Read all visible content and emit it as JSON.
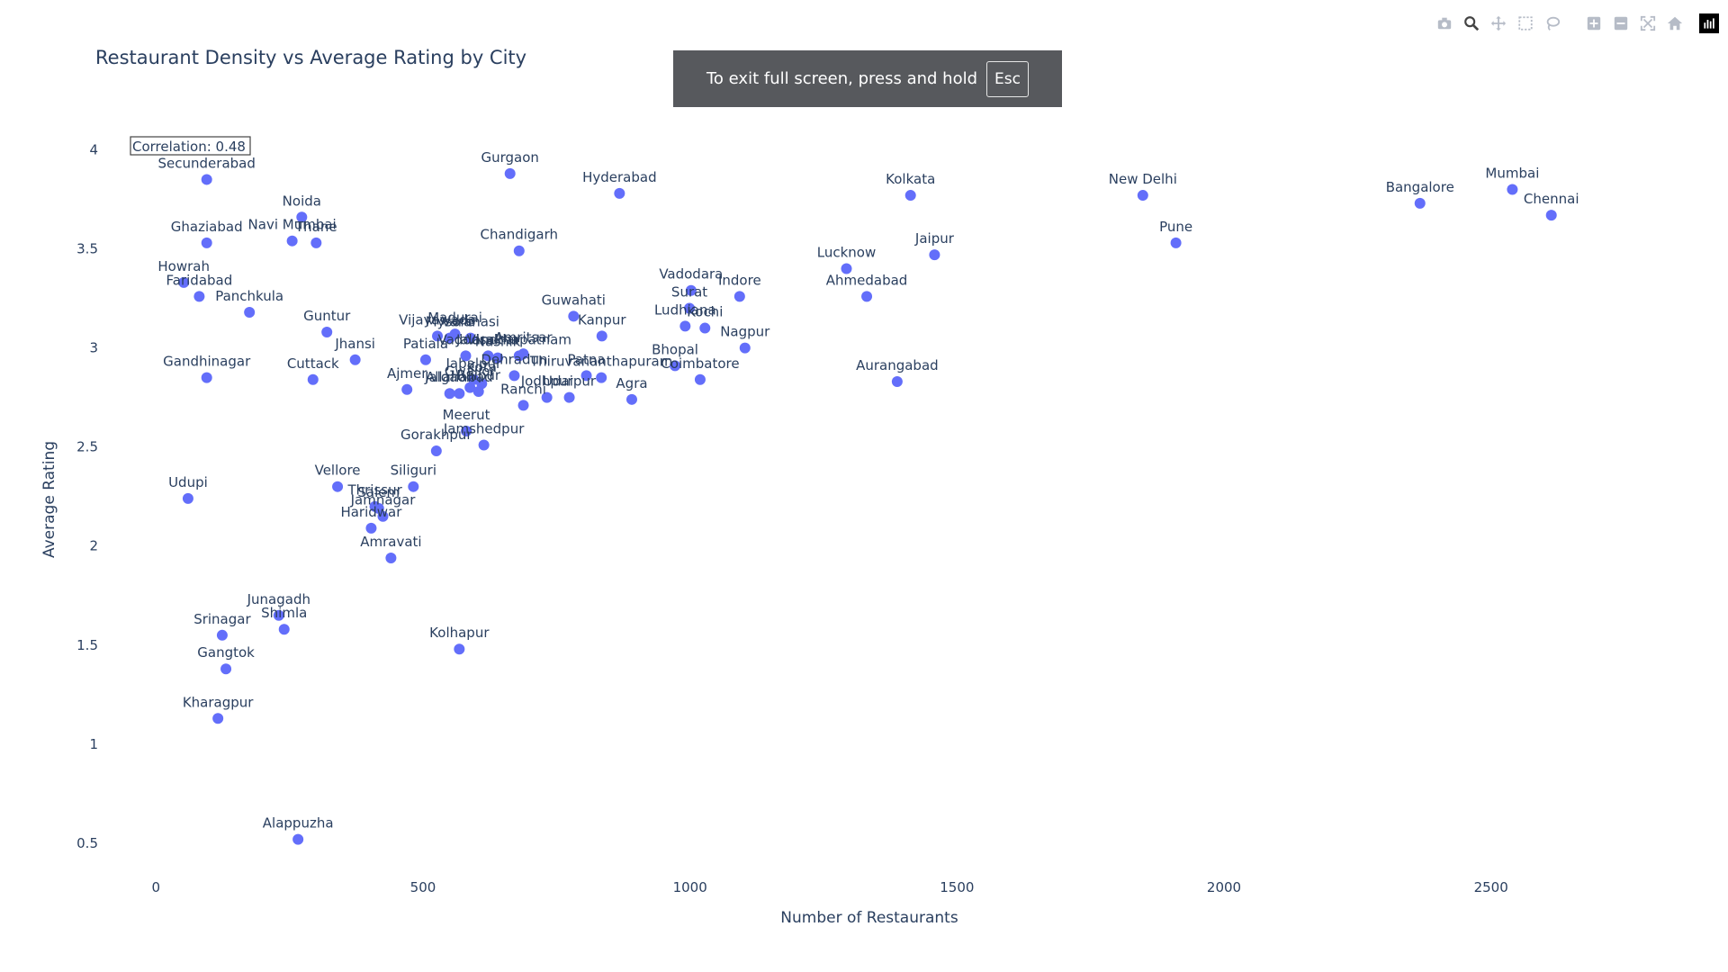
{
  "modebar": {
    "icons": [
      "camera-icon",
      "zoom-icon",
      "pan-icon",
      "box-select-icon",
      "lasso-select-icon",
      "zoom-in-icon",
      "zoom-out-icon",
      "autoscale-icon",
      "reset-axes-icon",
      "plotly-logo-icon"
    ]
  },
  "toast": {
    "text": "To exit full screen, press and hold",
    "key": "Esc"
  },
  "chart_data": {
    "type": "scatter",
    "title": "Restaurant Density vs Average Rating by City",
    "xlabel": "Number of Restaurants",
    "ylabel": "Average Rating",
    "xlim": [
      -100,
      2900
    ],
    "ylim": [
      0.35,
      4.12
    ],
    "x_ticks": [
      0,
      500,
      1000,
      1500,
      2000,
      2500
    ],
    "y_ticks": [
      0.5,
      1,
      1.5,
      2,
      2.5,
      3,
      3.5,
      4
    ],
    "grid": false,
    "marker_color": "#636efa",
    "annotation": "Correlation: 0.48",
    "points": [
      {
        "city": "Secunderabad",
        "x": 95,
        "y": 3.85
      },
      {
        "city": "Gurgaon",
        "x": 663,
        "y": 3.88
      },
      {
        "city": "Hyderabad",
        "x": 868,
        "y": 3.78
      },
      {
        "city": "Kolkata",
        "x": 1413,
        "y": 3.77
      },
      {
        "city": "New Delhi",
        "x": 1848,
        "y": 3.77
      },
      {
        "city": "Bangalore",
        "x": 2367,
        "y": 3.73
      },
      {
        "city": "Mumbai",
        "x": 2540,
        "y": 3.8
      },
      {
        "city": "Chennai",
        "x": 2613,
        "y": 3.67
      },
      {
        "city": "Pune",
        "x": 1910,
        "y": 3.53
      },
      {
        "city": "Jaipur",
        "x": 1458,
        "y": 3.47
      },
      {
        "city": "Lucknow",
        "x": 1293,
        "y": 3.4
      },
      {
        "city": "Ahmedabad",
        "x": 1331,
        "y": 3.26
      },
      {
        "city": "Noida",
        "x": 273,
        "y": 3.66
      },
      {
        "city": "Ghaziabad",
        "x": 95,
        "y": 3.53
      },
      {
        "city": "Navi Mumbai",
        "x": 255,
        "y": 3.54
      },
      {
        "city": "Thane",
        "x": 300,
        "y": 3.53
      },
      {
        "city": "Chandigarh",
        "x": 680,
        "y": 3.49
      },
      {
        "city": "Howrah",
        "x": 52,
        "y": 3.33
      },
      {
        "city": "Faridabad",
        "x": 81,
        "y": 3.26
      },
      {
        "city": "Panchkula",
        "x": 175,
        "y": 3.18
      },
      {
        "city": "Vadodara",
        "x": 1002,
        "y": 3.29
      },
      {
        "city": "Indore",
        "x": 1093,
        "y": 3.26
      },
      {
        "city": "Surat",
        "x": 999,
        "y": 3.2
      },
      {
        "city": "Ludhiana",
        "x": 991,
        "y": 3.11
      },
      {
        "city": "Kochi",
        "x": 1028,
        "y": 3.1
      },
      {
        "city": "Guwahati",
        "x": 782,
        "y": 3.16
      },
      {
        "city": "Kanpur",
        "x": 835,
        "y": 3.06
      },
      {
        "city": "Nagpur",
        "x": 1103,
        "y": 3.0
      },
      {
        "city": "Bhopal",
        "x": 972,
        "y": 2.91
      },
      {
        "city": "Coimbatore",
        "x": 1019,
        "y": 2.84
      },
      {
        "city": "Aurangabad",
        "x": 1388,
        "y": 2.83
      },
      {
        "city": "Guntur",
        "x": 320,
        "y": 3.08
      },
      {
        "city": "Jhansi",
        "x": 373,
        "y": 2.94
      },
      {
        "city": "Gandhinagar",
        "x": 95,
        "y": 2.85
      },
      {
        "city": "Cuttack",
        "x": 294,
        "y": 2.84
      },
      {
        "city": "Vijayawada",
        "x": 527,
        "y": 3.06
      },
      {
        "city": "Madurai",
        "x": 560,
        "y": 3.07
      },
      {
        "city": "Mysore",
        "x": 550,
        "y": 3.05
      },
      {
        "city": "Varanasi",
        "x": 589,
        "y": 3.05
      },
      {
        "city": "Patiala",
        "x": 505,
        "y": 2.94
      },
      {
        "city": "Nashik",
        "x": 640,
        "y": 2.95
      },
      {
        "city": "Vadodra",
        "x": 580,
        "y": 2.96
      },
      {
        "city": "Jalandhar",
        "x": 622,
        "y": 2.96
      },
      {
        "city": "Amritsar",
        "x": 688,
        "y": 2.97
      },
      {
        "city": "Visakhapatnam",
        "x": 680,
        "y": 2.96
      },
      {
        "city": "Jabalpur",
        "x": 595,
        "y": 2.84
      },
      {
        "city": "Kota",
        "x": 610,
        "y": 2.82
      },
      {
        "city": "Gwalior",
        "x": 588,
        "y": 2.8
      },
      {
        "city": "Allahabad",
        "x": 568,
        "y": 2.77
      },
      {
        "city": "Ajmer",
        "x": 470,
        "y": 2.79
      },
      {
        "city": "Raipur",
        "x": 604,
        "y": 2.78
      },
      {
        "city": "Jalgaon",
        "x": 550,
        "y": 2.77
      },
      {
        "city": "Dehradun",
        "x": 671,
        "y": 2.86
      },
      {
        "city": "Jodhpur",
        "x": 732,
        "y": 2.75
      },
      {
        "city": "Udaipur",
        "x": 774,
        "y": 2.75
      },
      {
        "city": "Ranchi",
        "x": 688,
        "y": 2.71
      },
      {
        "city": "Patna",
        "x": 806,
        "y": 2.86
      },
      {
        "city": "Thiruvananthapuram",
        "x": 834,
        "y": 2.85
      },
      {
        "city": "Agra",
        "x": 891,
        "y": 2.74
      },
      {
        "city": "Meerut",
        "x": 581,
        "y": 2.58
      },
      {
        "city": "Jamshedpur",
        "x": 614,
        "y": 2.51
      },
      {
        "city": "Gorakhpur",
        "x": 525,
        "y": 2.48
      },
      {
        "city": "Vellore",
        "x": 340,
        "y": 2.3
      },
      {
        "city": "Siliguri",
        "x": 482,
        "y": 2.3
      },
      {
        "city": "Salem",
        "x": 417,
        "y": 2.19
      },
      {
        "city": "Thrissur",
        "x": 410,
        "y": 2.2
      },
      {
        "city": "Jamnagar",
        "x": 425,
        "y": 2.15
      },
      {
        "city": "Haridwar",
        "x": 403,
        "y": 2.09
      },
      {
        "city": "Udupi",
        "x": 60,
        "y": 2.24
      },
      {
        "city": "Amravati",
        "x": 440,
        "y": 1.94
      },
      {
        "city": "Junagadh",
        "x": 230,
        "y": 1.65
      },
      {
        "city": "Shimla",
        "x": 240,
        "y": 1.58
      },
      {
        "city": "Srinagar",
        "x": 124,
        "y": 1.55
      },
      {
        "city": "Kolhapur",
        "x": 568,
        "y": 1.48
      },
      {
        "city": "Gangtok",
        "x": 131,
        "y": 1.38
      },
      {
        "city": "Kharagpur",
        "x": 116,
        "y": 1.13
      },
      {
        "city": "Alappuzha",
        "x": 266,
        "y": 0.52
      }
    ]
  }
}
